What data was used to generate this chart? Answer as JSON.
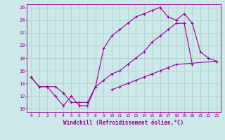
{
  "xlabel": "Windchill (Refroidissement éolien,°C)",
  "ylabel": "",
  "xlim": [
    -0.5,
    23.5
  ],
  "ylim": [
    9.5,
    26.5
  ],
  "xticks": [
    0,
    1,
    2,
    3,
    4,
    5,
    6,
    7,
    8,
    9,
    10,
    11,
    12,
    13,
    14,
    15,
    16,
    17,
    18,
    19,
    20,
    21,
    22,
    23
  ],
  "yticks": [
    10,
    12,
    14,
    16,
    18,
    20,
    22,
    24,
    26
  ],
  "bg_color": "#cce8e8",
  "line_color": "#990099",
  "grid_color": "#aacccc",
  "line1_x": [
    0,
    1,
    2,
    3,
    4,
    5,
    6,
    7,
    8,
    9,
    10,
    11,
    12,
    13,
    14,
    15,
    16,
    17,
    18,
    19,
    20,
    21,
    22,
    23
  ],
  "line1_y": [
    15.0,
    13.5,
    13.5,
    12.0,
    10.5,
    12.0,
    10.5,
    10.5,
    13.5,
    19.5,
    21.5,
    22.5,
    23.5,
    24.5,
    25.0,
    25.5,
    26.0,
    24.5,
    24.0,
    25.0,
    23.5,
    19.0,
    18.0,
    17.5
  ],
  "line2_x": [
    0,
    1,
    2,
    3,
    4,
    5,
    6,
    7,
    8,
    9,
    10,
    11,
    12,
    13,
    14,
    15,
    16,
    17,
    18,
    19,
    20
  ],
  "line2_y": [
    15.0,
    13.5,
    13.5,
    13.5,
    12.5,
    11.0,
    11.0,
    11.0,
    13.5,
    14.5,
    15.5,
    16.0,
    17.0,
    18.0,
    19.0,
    20.5,
    21.5,
    22.5,
    23.5,
    23.5,
    17.0
  ],
  "line3_x": [
    10,
    11,
    12,
    13,
    14,
    15,
    16,
    17,
    18,
    23
  ],
  "line3_y": [
    13.0,
    13.5,
    14.0,
    14.5,
    15.0,
    15.5,
    16.0,
    16.5,
    17.0,
    17.5
  ]
}
